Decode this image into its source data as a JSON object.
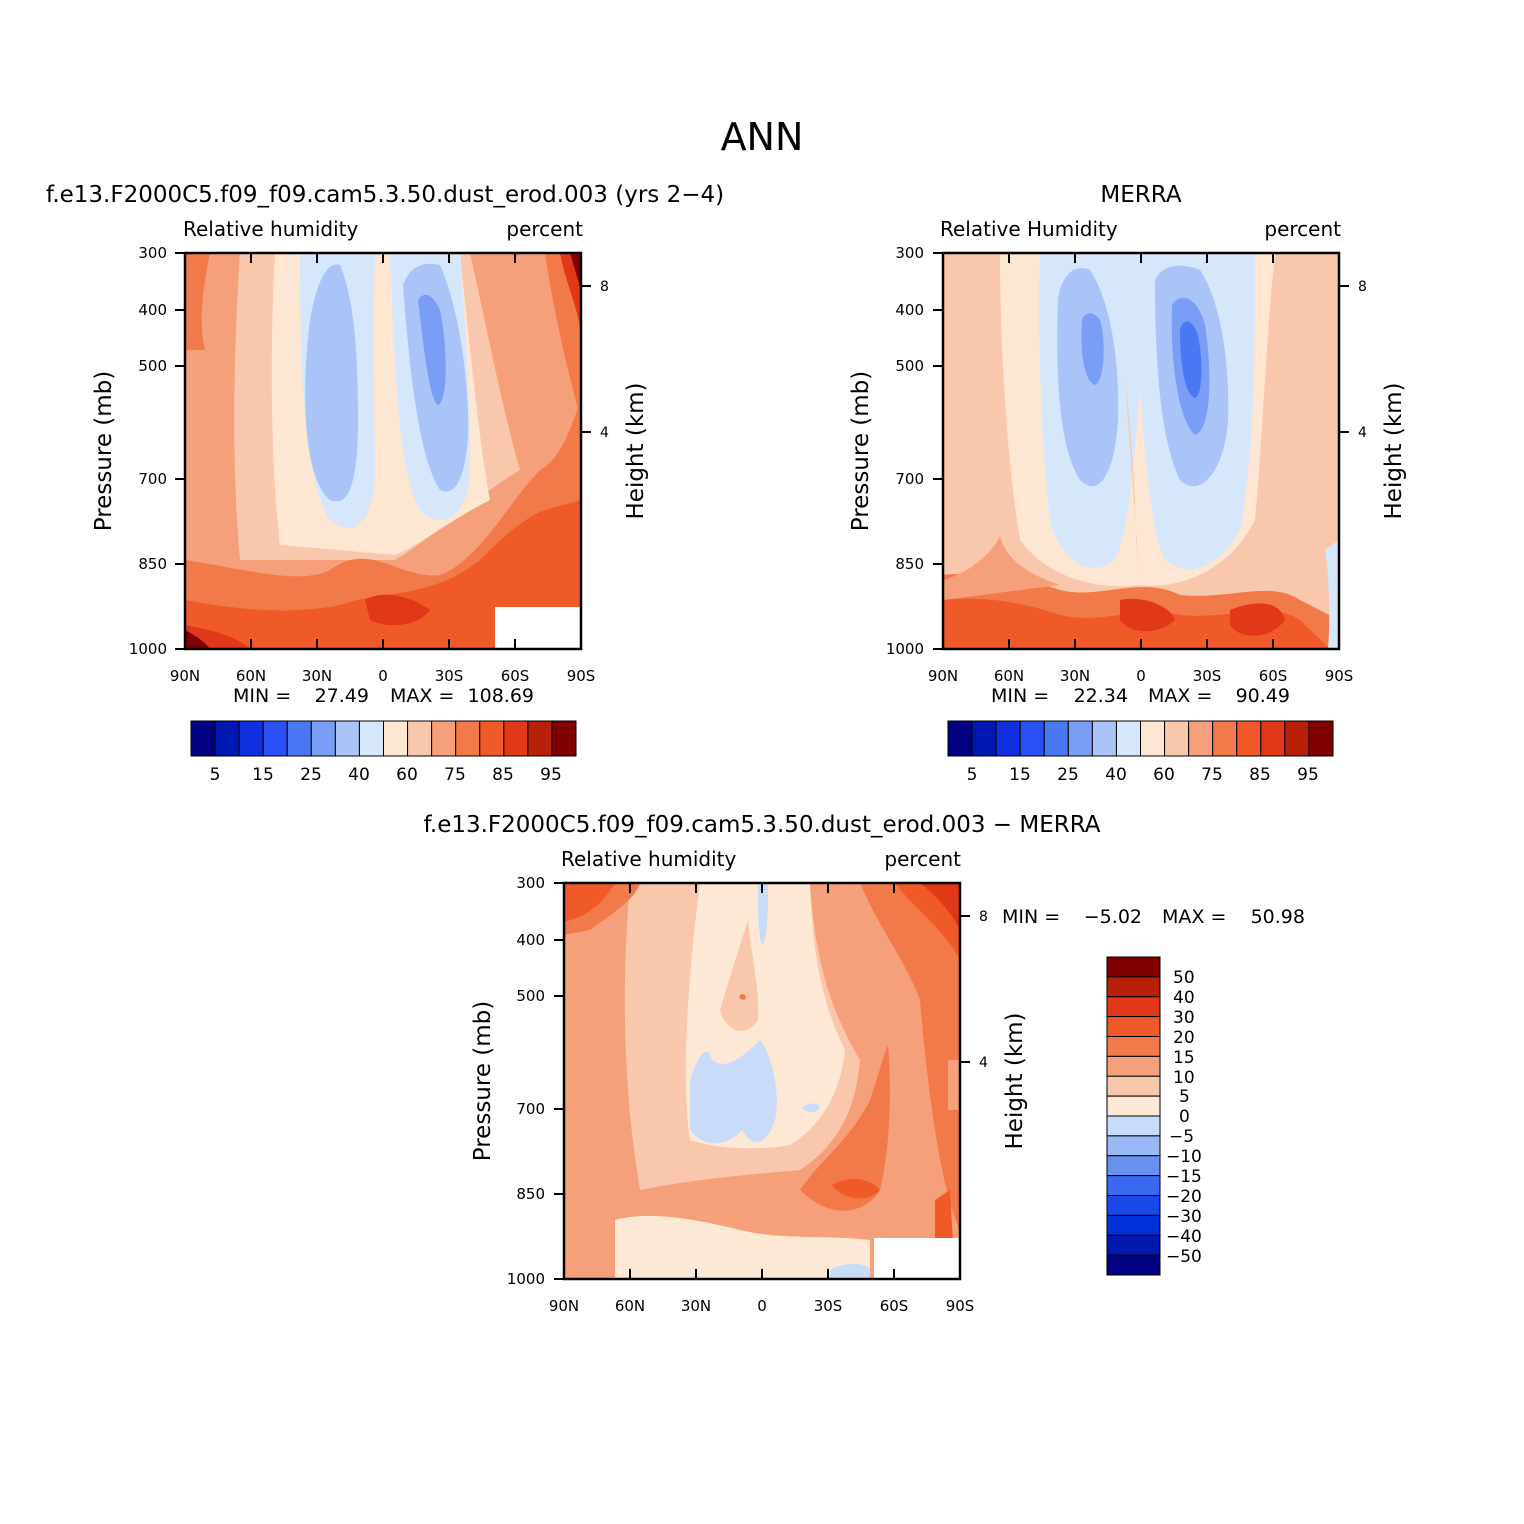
{
  "figure": {
    "title": "ANN"
  },
  "colors": {
    "abs_levels": [
      "#000080",
      "#0018b0",
      "#1030e0",
      "#2a50f5",
      "#4a78f5",
      "#7a9ef5",
      "#aac4f8",
      "#d6e6fb",
      "#fde6d2",
      "#f9c8ac",
      "#f5a07a",
      "#f27a4a",
      "#f05a28",
      "#e03818",
      "#b82008",
      "#800000"
    ],
    "diff_levels": [
      "#000080",
      "#0018b0",
      "#0030d8",
      "#1848e8",
      "#3a68f0",
      "#6890f0",
      "#98b8f6",
      "#c8dcfa",
      "#fde8d6",
      "#f9c8ac",
      "#f5a07a",
      "#f27a4a",
      "#f05a28",
      "#e03818",
      "#b82008",
      "#800000"
    ]
  },
  "chart_data": [
    {
      "type": "heatmap",
      "panel": "model",
      "title": "f.e13.F2000C5.f09_f09.cam5.3.50.dust_erod.003 (yrs 2−4)",
      "subtitle_left": "Relative humidity",
      "subtitle_right": "percent",
      "ylabel": "Pressure (mb)",
      "ylabel_right": "Height (km)",
      "x_ticks": [
        "90N",
        "60N",
        "30N",
        "0",
        "30S",
        "60S",
        "90S"
      ],
      "y_ticks": [
        "300",
        "400",
        "500",
        "700",
        "850",
        "1000"
      ],
      "y_ticks_right": [
        "8",
        "4"
      ],
      "min_label": "MIN =",
      "min_value": "27.49",
      "max_label": "MAX =",
      "max_value": "108.69",
      "xlim": [
        90,
        -90
      ],
      "ylim": [
        1000,
        300
      ],
      "colorbar_labels": [
        "5",
        "15",
        "25",
        "40",
        "60",
        "75",
        "85",
        "95"
      ]
    },
    {
      "type": "heatmap",
      "panel": "obs",
      "title": "MERRA",
      "subtitle_left": "Relative Humidity",
      "subtitle_right": "percent",
      "ylabel": "Pressure (mb)",
      "ylabel_right": "Height (km)",
      "x_ticks": [
        "90N",
        "60N",
        "30N",
        "0",
        "30S",
        "60S",
        "90S"
      ],
      "y_ticks": [
        "300",
        "400",
        "500",
        "700",
        "850",
        "1000"
      ],
      "y_ticks_right": [
        "8",
        "4"
      ],
      "min_label": "MIN =",
      "min_value": "22.34",
      "max_label": "MAX =",
      "max_value": "90.49",
      "xlim": [
        90,
        -90
      ],
      "ylim": [
        1000,
        300
      ],
      "colorbar_labels": [
        "5",
        "15",
        "25",
        "40",
        "60",
        "75",
        "85",
        "95"
      ]
    },
    {
      "type": "heatmap",
      "panel": "diff",
      "title": "f.e13.F2000C5.f09_f09.cam5.3.50.dust_erod.003 − MERRA",
      "subtitle_left": "Relative humidity",
      "subtitle_right": "percent",
      "ylabel": "Pressure (mb)",
      "ylabel_right": "Height (km)",
      "x_ticks": [
        "90N",
        "60N",
        "30N",
        "0",
        "30S",
        "60S",
        "90S"
      ],
      "y_ticks": [
        "300",
        "400",
        "500",
        "700",
        "850",
        "1000"
      ],
      "y_ticks_right": [
        "8",
        "4"
      ],
      "min_label": "MIN =",
      "min_value": "−5.02",
      "max_label": "MAX =",
      "max_value": "50.98",
      "xlim": [
        90,
        -90
      ],
      "ylim": [
        1000,
        300
      ],
      "colorbar_labels": [
        "50",
        "40",
        "30",
        "20",
        "15",
        "10",
        "5",
        "0",
        "−5",
        "−10",
        "−15",
        "−20",
        "−30",
        "−40",
        "−50"
      ]
    }
  ]
}
